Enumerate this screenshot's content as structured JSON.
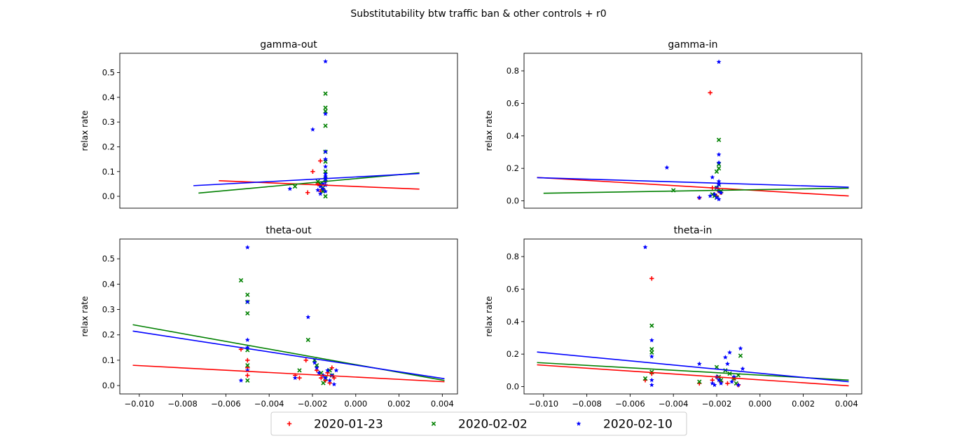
{
  "figure": {
    "suptitle": "Substitutability btw traffic ban & other controls + r0"
  },
  "legend": {
    "entries": [
      {
        "label": "2020-01-23",
        "color": "#ff0000",
        "marker": "plus"
      },
      {
        "label": "2020-02-02",
        "color": "#008000",
        "marker": "x"
      },
      {
        "label": "2020-02-10",
        "color": "#0000ff",
        "marker": "star"
      }
    ]
  },
  "chart_data": [
    {
      "id": "gamma-out",
      "type": "scatter",
      "title": "gamma-out",
      "ylabel": "relax rate",
      "xlim": [
        -0.0109,
        0.0024
      ],
      "ylim": [
        -0.048,
        0.578
      ],
      "xticks": [],
      "yticks": [
        0.0,
        0.1,
        0.2,
        0.3,
        0.4,
        0.5
      ],
      "series": [
        {
          "name": "2020-01-23",
          "color": "#ff0000",
          "marker": "plus",
          "points": [
            [
              -0.003,
              0.143
            ],
            [
              -0.0033,
              0.1
            ],
            [
              -0.0035,
              0.015
            ],
            [
              -0.0031,
              0.05
            ],
            [
              -0.0029,
              0.03
            ],
            [
              -0.0028,
              0.06
            ],
            [
              -0.003,
              0.02
            ]
          ],
          "fit": [
            [
              -0.007,
              0.063
            ],
            [
              0.0009,
              0.029
            ]
          ]
        },
        {
          "name": "2020-02-02",
          "color": "#008000",
          "marker": "x",
          "points": [
            [
              -0.0028,
              0.415
            ],
            [
              -0.0028,
              0.358
            ],
            [
              -0.0028,
              0.344
            ],
            [
              -0.0028,
              0.285
            ],
            [
              -0.0028,
              0.18
            ],
            [
              -0.0028,
              0.14
            ],
            [
              -0.0028,
              0.1
            ],
            [
              -0.0028,
              0.07
            ],
            [
              -0.004,
              0.04
            ],
            [
              -0.003,
              0.05
            ],
            [
              -0.0029,
              0.02
            ],
            [
              -0.0028,
              0.0
            ],
            [
              -0.0031,
              0.06
            ],
            [
              -0.0029,
              0.035
            ]
          ],
          "fit": [
            [
              -0.0078,
              0.013
            ],
            [
              0.0009,
              0.095
            ]
          ]
        },
        {
          "name": "2020-02-10",
          "color": "#0000ff",
          "marker": "star",
          "points": [
            [
              -0.0028,
              0.545
            ],
            [
              -0.0028,
              0.333
            ],
            [
              -0.0033,
              0.27
            ],
            [
              -0.0028,
              0.18
            ],
            [
              -0.0028,
              0.15
            ],
            [
              -0.0028,
              0.12
            ],
            [
              -0.0028,
              0.09
            ],
            [
              -0.0028,
              0.08
            ],
            [
              -0.0028,
              0.07
            ],
            [
              -0.0028,
              0.06
            ],
            [
              -0.0029,
              0.05
            ],
            [
              -0.003,
              0.04
            ],
            [
              -0.0029,
              0.03
            ],
            [
              -0.0028,
              0.02
            ],
            [
              -0.0031,
              0.025
            ],
            [
              -0.0042,
              0.03
            ],
            [
              -0.003,
              0.01
            ],
            [
              -0.0028,
              0.045
            ]
          ],
          "fit": [
            [
              -0.008,
              0.043
            ],
            [
              0.0009,
              0.092
            ]
          ]
        }
      ]
    },
    {
      "id": "gamma-in",
      "type": "scatter",
      "title": "gamma-in",
      "ylabel": "relax rate",
      "xlim": [
        -0.0109,
        0.0047
      ],
      "ylim": [
        -0.045,
        0.908
      ],
      "xticks": [],
      "yticks": [
        0.0,
        0.2,
        0.4,
        0.6,
        0.8
      ],
      "series": [
        {
          "name": "2020-01-23",
          "color": "#ff0000",
          "marker": "plus",
          "points": [
            [
              -0.0023,
              0.665
            ],
            [
              -0.0028,
              0.02
            ],
            [
              -0.0021,
              0.04
            ],
            [
              -0.0019,
              0.06
            ],
            [
              -0.002,
              0.03
            ],
            [
              -0.0022,
              0.08
            ],
            [
              -0.0018,
              0.05
            ]
          ],
          "fit": [
            [
              -0.0103,
              0.144
            ],
            [
              0.0041,
              0.03
            ]
          ]
        },
        {
          "name": "2020-02-02",
          "color": "#008000",
          "marker": "x",
          "points": [
            [
              -0.0019,
              0.375
            ],
            [
              -0.0019,
              0.225
            ],
            [
              -0.0019,
              0.2
            ],
            [
              -0.002,
              0.18
            ],
            [
              -0.004,
              0.065
            ],
            [
              -0.0022,
              0.04
            ],
            [
              -0.002,
              0.08
            ],
            [
              -0.0018,
              0.06
            ],
            [
              -0.0021,
              0.03
            ],
            [
              -0.0019,
              0.1
            ],
            [
              -0.002,
              0.02
            ]
          ],
          "fit": [
            [
              -0.01,
              0.047
            ],
            [
              0.0041,
              0.078
            ]
          ]
        },
        {
          "name": "2020-02-10",
          "color": "#0000ff",
          "marker": "star",
          "points": [
            [
              -0.0019,
              0.855
            ],
            [
              -0.0019,
              0.285
            ],
            [
              -0.0019,
              0.235
            ],
            [
              -0.0043,
              0.205
            ],
            [
              -0.0022,
              0.145
            ],
            [
              -0.0019,
              0.12
            ],
            [
              -0.0019,
              0.1
            ],
            [
              -0.002,
              0.08
            ],
            [
              -0.0019,
              0.06
            ],
            [
              -0.0021,
              0.04
            ],
            [
              -0.002,
              0.02
            ],
            [
              -0.0028,
              0.02
            ],
            [
              -0.0023,
              0.03
            ],
            [
              -0.0019,
              0.01
            ],
            [
              -0.0018,
              0.05
            ]
          ],
          "fit": [
            [
              -0.0103,
              0.143
            ],
            [
              0.0041,
              0.084
            ]
          ]
        }
      ]
    },
    {
      "id": "theta-out",
      "type": "scatter",
      "title": "theta-out",
      "ylabel": "relax rate",
      "xlim": [
        -0.0109,
        0.0047
      ],
      "ylim": [
        -0.033,
        0.578
      ],
      "xticks": [
        -0.01,
        -0.008,
        -0.006,
        -0.004,
        -0.002,
        0.0,
        0.002,
        0.004
      ],
      "yticks": [
        0.0,
        0.1,
        0.2,
        0.3,
        0.4,
        0.5
      ],
      "series": [
        {
          "name": "2020-01-23",
          "color": "#ff0000",
          "marker": "plus",
          "points": [
            [
              -0.0053,
              0.143
            ],
            [
              -0.005,
              0.1
            ],
            [
              -0.005,
              0.07
            ],
            [
              -0.005,
              0.04
            ],
            [
              -0.0023,
              0.1
            ],
            [
              -0.0028,
              0.04
            ],
            [
              -0.0026,
              0.03
            ],
            [
              -0.0018,
              0.06
            ],
            [
              -0.0016,
              0.03
            ],
            [
              -0.0013,
              0.05
            ],
            [
              -0.0014,
              0.02
            ],
            [
              -0.0012,
              0.01
            ],
            [
              -0.0011,
              0.07
            ],
            [
              -0.001,
              0.03
            ]
          ],
          "fit": [
            [
              -0.0103,
              0.08
            ],
            [
              0.0041,
              0.015
            ]
          ]
        },
        {
          "name": "2020-02-02",
          "color": "#008000",
          "marker": "x",
          "points": [
            [
              -0.0053,
              0.415
            ],
            [
              -0.005,
              0.358
            ],
            [
              -0.005,
              0.33
            ],
            [
              -0.005,
              0.285
            ],
            [
              -0.0022,
              0.18
            ],
            [
              -0.005,
              0.14
            ],
            [
              -0.005,
              0.08
            ],
            [
              -0.005,
              0.02
            ],
            [
              -0.0026,
              0.06
            ],
            [
              -0.0019,
              0.1
            ],
            [
              -0.0018,
              0.08
            ],
            [
              -0.0016,
              0.05
            ],
            [
              -0.0014,
              0.03
            ],
            [
              -0.0012,
              0.06
            ],
            [
              -0.0015,
              0.01
            ],
            [
              -0.0011,
              0.04
            ]
          ],
          "fit": [
            [
              -0.0103,
              0.24
            ],
            [
              0.0041,
              0.02
            ]
          ]
        },
        {
          "name": "2020-02-10",
          "color": "#0000ff",
          "marker": "star",
          "points": [
            [
              -0.005,
              0.545
            ],
            [
              -0.005,
              0.33
            ],
            [
              -0.0022,
              0.27
            ],
            [
              -0.005,
              0.18
            ],
            [
              -0.005,
              0.15
            ],
            [
              -0.0053,
              0.02
            ],
            [
              -0.005,
              0.06
            ],
            [
              -0.0019,
              0.09
            ],
            [
              -0.0018,
              0.07
            ],
            [
              -0.0017,
              0.05
            ],
            [
              -0.0015,
              0.04
            ],
            [
              -0.0014,
              0.03
            ],
            [
              -0.0013,
              0.06
            ],
            [
              -0.0012,
              0.02
            ],
            [
              -0.0011,
              0.04
            ],
            [
              -0.001,
              0.005
            ],
            [
              -0.0009,
              0.06
            ],
            [
              -0.0028,
              0.03
            ]
          ],
          "fit": [
            [
              -0.0103,
              0.215
            ],
            [
              0.0041,
              0.027
            ]
          ]
        }
      ]
    },
    {
      "id": "theta-in",
      "type": "scatter",
      "title": "theta-in",
      "ylabel": "relax rate",
      "xlim": [
        -0.0109,
        0.0047
      ],
      "ylim": [
        -0.045,
        0.908
      ],
      "xticks": [
        -0.01,
        -0.008,
        -0.006,
        -0.004,
        -0.002,
        0.0,
        0.002,
        0.004
      ],
      "yticks": [
        0.0,
        0.2,
        0.4,
        0.6,
        0.8
      ],
      "series": [
        {
          "name": "2020-01-23",
          "color": "#ff0000",
          "marker": "plus",
          "points": [
            [
              -0.005,
              0.665
            ],
            [
              -0.0053,
              0.04
            ],
            [
              -0.005,
              0.08
            ],
            [
              -0.0028,
              0.02
            ],
            [
              -0.0022,
              0.04
            ],
            [
              -0.002,
              0.06
            ],
            [
              -0.0018,
              0.03
            ],
            [
              -0.0015,
              0.02
            ],
            [
              -0.0012,
              0.05
            ],
            [
              -0.001,
              0.01
            ]
          ],
          "fit": [
            [
              -0.0103,
              0.134
            ],
            [
              0.0041,
              0.005
            ]
          ]
        },
        {
          "name": "2020-02-02",
          "color": "#008000",
          "marker": "x",
          "points": [
            [
              -0.005,
              0.375
            ],
            [
              -0.005,
              0.23
            ],
            [
              -0.005,
              0.21
            ],
            [
              -0.005,
              0.09
            ],
            [
              -0.0053,
              0.05
            ],
            [
              -0.0028,
              0.03
            ],
            [
              -0.002,
              0.12
            ],
            [
              -0.0019,
              0.06
            ],
            [
              -0.0018,
              0.04
            ],
            [
              -0.0016,
              0.1
            ],
            [
              -0.0014,
              0.08
            ],
            [
              -0.0012,
              0.05
            ],
            [
              -0.001,
              0.07
            ],
            [
              -0.0009,
              0.19
            ],
            [
              -0.0011,
              0.02
            ]
          ],
          "fit": [
            [
              -0.0103,
              0.148
            ],
            [
              0.0041,
              0.04
            ]
          ]
        },
        {
          "name": "2020-02-10",
          "color": "#0000ff",
          "marker": "star",
          "points": [
            [
              -0.0053,
              0.858
            ],
            [
              -0.005,
              0.285
            ],
            [
              -0.005,
              0.185
            ],
            [
              -0.005,
              0.04
            ],
            [
              -0.005,
              0.01
            ],
            [
              -0.0028,
              0.14
            ],
            [
              -0.0022,
              0.02
            ],
            [
              -0.002,
              0.06
            ],
            [
              -0.0019,
              0.04
            ],
            [
              -0.0018,
              0.02
            ],
            [
              -0.0016,
              0.18
            ],
            [
              -0.0015,
              0.14
            ],
            [
              -0.0014,
              0.21
            ],
            [
              -0.0013,
              0.03
            ],
            [
              -0.0012,
              0.06
            ],
            [
              -0.001,
              0.01
            ],
            [
              -0.0009,
              0.235
            ],
            [
              -0.0008,
              0.11
            ],
            [
              -0.0021,
              0.01
            ]
          ],
          "fit": [
            [
              -0.0103,
              0.213
            ],
            [
              0.0041,
              0.03
            ]
          ]
        }
      ]
    }
  ]
}
